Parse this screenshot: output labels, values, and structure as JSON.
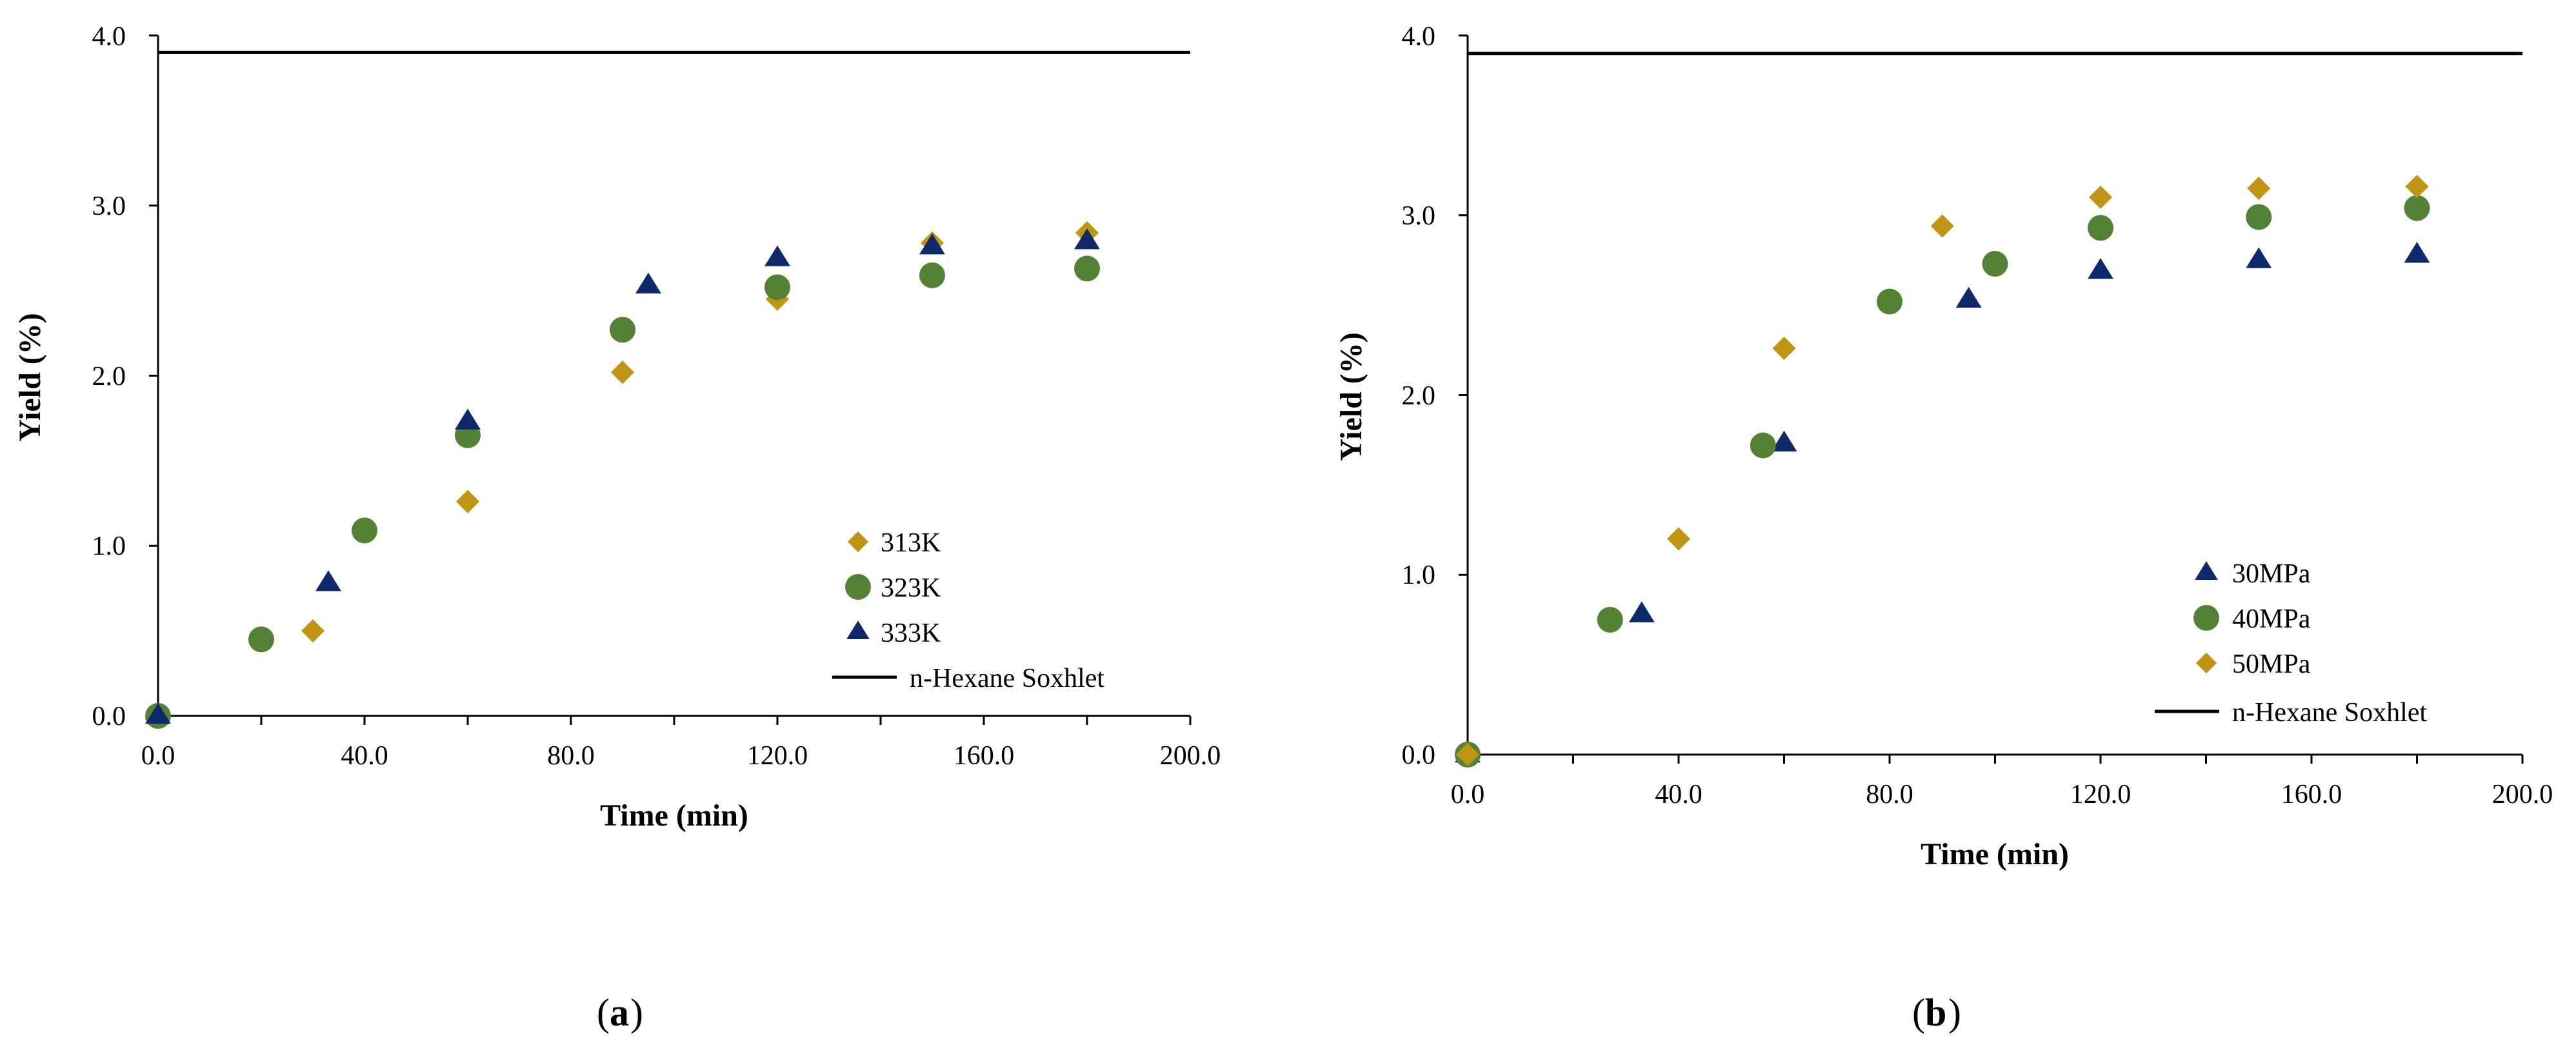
{
  "colors": {
    "s313": "#C09514",
    "s323": "#548235",
    "s333": "#0E2A6B",
    "ref": "#000000"
  },
  "chart_data": [
    {
      "type": "scatter",
      "panel_label": "a",
      "xlabel": "Time (min)",
      "ylabel": "Yield (%)",
      "xlim": [
        0,
        200
      ],
      "ylim": [
        0,
        4
      ],
      "xticks": [
        "0.0",
        "40.0",
        "80.0",
        "120.0",
        "160.0",
        "200.0"
      ],
      "yticks": [
        "0.0",
        "1.0",
        "2.0",
        "3.0",
        "4.0"
      ],
      "reference_line": {
        "name": "n-Hexane Soxhlet",
        "y": 3.9
      },
      "series": [
        {
          "name": "313K",
          "marker": "diamond",
          "color": "#C09514",
          "points": [
            [
              0,
              0.0
            ],
            [
              30,
              0.5
            ],
            [
              60,
              1.26
            ],
            [
              90,
              2.02
            ],
            [
              120,
              2.45
            ],
            [
              150,
              2.78
            ],
            [
              180,
              2.84
            ]
          ]
        },
        {
          "name": "323K",
          "marker": "circle",
          "color": "#548235",
          "points": [
            [
              0,
              0.0
            ],
            [
              20,
              0.45
            ],
            [
              40,
              1.09
            ],
            [
              60,
              1.65
            ],
            [
              90,
              2.27
            ],
            [
              120,
              2.52
            ],
            [
              150,
              2.59
            ],
            [
              180,
              2.63
            ]
          ]
        },
        {
          "name": "333K",
          "marker": "triangle",
          "color": "#0E2A6B",
          "points": [
            [
              0,
              0.0
            ],
            [
              33,
              0.78
            ],
            [
              60,
              1.73
            ],
            [
              95,
              2.53
            ],
            [
              120,
              2.69
            ],
            [
              150,
              2.76
            ],
            [
              180,
              2.79
            ]
          ]
        }
      ]
    },
    {
      "type": "scatter",
      "panel_label": "b",
      "xlabel": "Time (min)",
      "ylabel": "Yield (%)",
      "xlim": [
        0,
        200
      ],
      "ylim": [
        0,
        4
      ],
      "xticks": [
        "0.0",
        "40.0",
        "80.0",
        "120.0",
        "160.0",
        "200.0"
      ],
      "yticks": [
        "0.0",
        "1.0",
        "2.0",
        "3.0",
        "4.0"
      ],
      "reference_line": {
        "name": "n-Hexane Soxhlet",
        "y": 3.9
      },
      "series": [
        {
          "name": "30MPa",
          "marker": "triangle",
          "color": "#0E2A6B",
          "points": [
            [
              0,
              0.0
            ],
            [
              33,
              0.78
            ],
            [
              60,
              1.73
            ],
            [
              95,
              2.53
            ],
            [
              120,
              2.69
            ],
            [
              150,
              2.75
            ],
            [
              180,
              2.78
            ]
          ]
        },
        {
          "name": "40MPa",
          "marker": "circle",
          "color": "#548235",
          "points": [
            [
              0,
              0.0
            ],
            [
              27,
              0.75
            ],
            [
              56,
              1.72
            ],
            [
              80,
              2.52
            ],
            [
              100,
              2.73
            ],
            [
              120,
              2.93
            ],
            [
              150,
              2.99
            ],
            [
              180,
              3.04
            ]
          ]
        },
        {
          "name": "50MPa",
          "marker": "diamond",
          "color": "#C09514",
          "points": [
            [
              0,
              0.0
            ],
            [
              40,
              1.2
            ],
            [
              60,
              2.26
            ],
            [
              90,
              2.94
            ],
            [
              120,
              3.1
            ],
            [
              150,
              3.15
            ],
            [
              180,
              3.16
            ]
          ]
        }
      ]
    }
  ]
}
